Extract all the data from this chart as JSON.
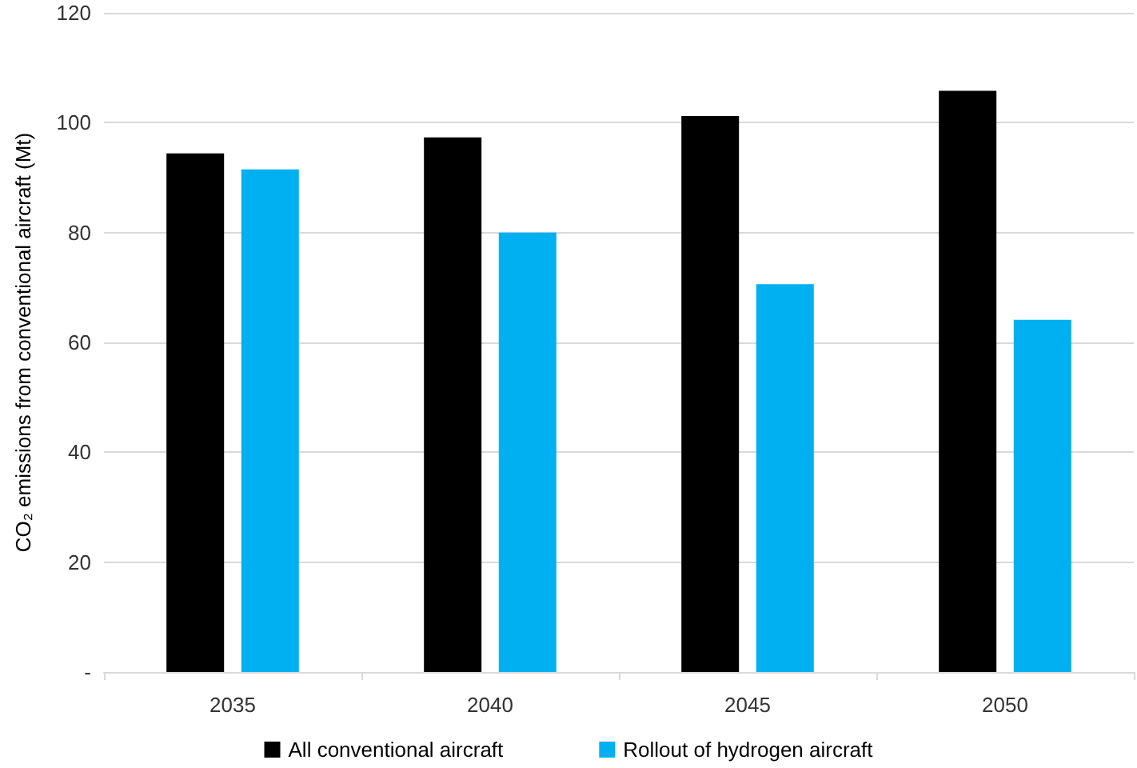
{
  "chart_data": {
    "type": "bar",
    "ylabel": "CO₂ emissions from conventional aircraft (Mt)",
    "categories": [
      "2035",
      "2040",
      "2045",
      "2050"
    ],
    "series": [
      {
        "name": "All conventional aircraft",
        "color": "#000000",
        "values": [
          94.4,
          97.3,
          101.2,
          105.8
        ]
      },
      {
        "name": "Rollout of hydrogen aircraft",
        "color": "#00b0f0",
        "values": [
          91.5,
          80.0,
          70.6,
          64.1
        ]
      }
    ],
    "ylim": [
      0,
      120
    ],
    "yticks": [
      {
        "value": 0,
        "label": "-"
      },
      20,
      40,
      60,
      80,
      100,
      120
    ],
    "grid": "y",
    "legend": "bottom"
  }
}
